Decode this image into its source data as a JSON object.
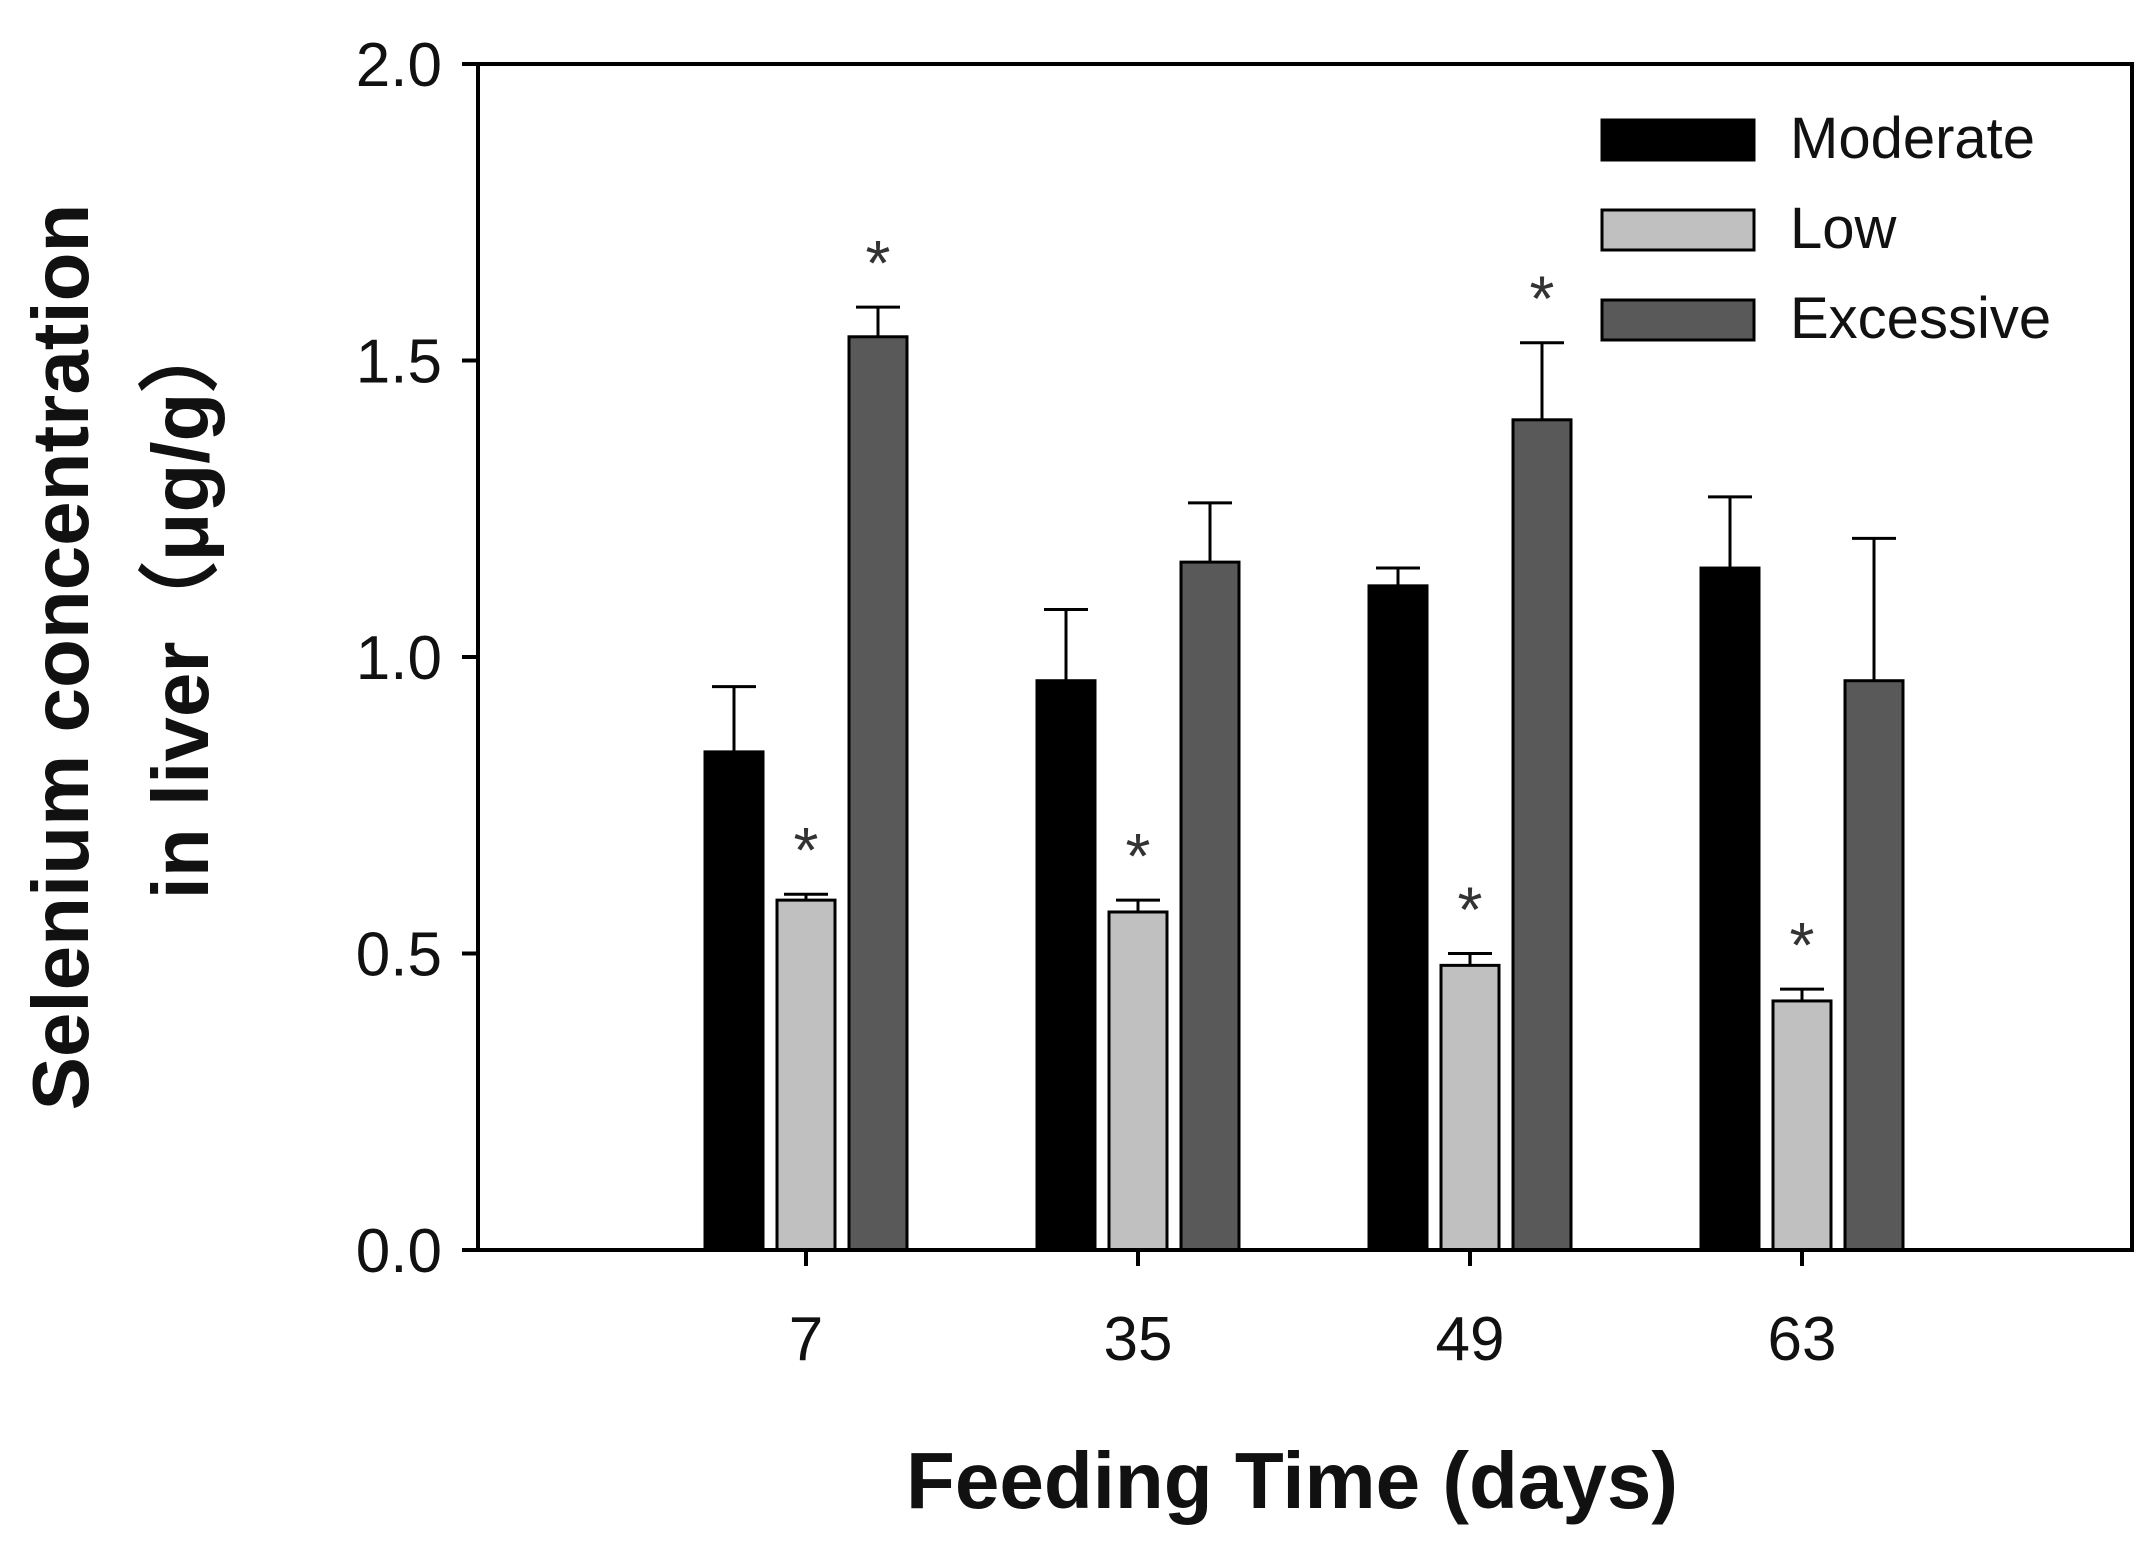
{
  "chart_data": {
    "type": "bar",
    "title": "",
    "xlabel": "Feeding Time (days)",
    "ylabel_line1": "Selenium concentration",
    "ylabel_line2": "in liver（μg/g）",
    "categories": [
      "7",
      "35",
      "49",
      "63"
    ],
    "ylim": [
      0,
      2.0
    ],
    "yticks": [
      0.0,
      0.5,
      1.0,
      1.5,
      2.0
    ],
    "ytick_labels": [
      "0.0",
      "0.5",
      "1.0",
      "1.5",
      "2.0"
    ],
    "grid": false,
    "legend_position": "top-right",
    "significance_marker": "*",
    "series": [
      {
        "name": "Moderate",
        "color": "#000000",
        "values": [
          0.84,
          0.96,
          1.12,
          1.15
        ],
        "errors": [
          0.11,
          0.12,
          0.03,
          0.12
        ],
        "significant": [
          false,
          false,
          false,
          false
        ]
      },
      {
        "name": "Low",
        "color": "#c0c0c0",
        "values": [
          0.59,
          0.57,
          0.48,
          0.42
        ],
        "errors": [
          0.01,
          0.02,
          0.02,
          0.02
        ],
        "significant": [
          true,
          true,
          true,
          true
        ]
      },
      {
        "name": "Excessive",
        "color": "#595959",
        "values": [
          1.54,
          1.16,
          1.4,
          0.96
        ],
        "errors": [
          0.05,
          0.1,
          0.13,
          0.24
        ],
        "significant": [
          true,
          false,
          true,
          false
        ]
      }
    ]
  }
}
